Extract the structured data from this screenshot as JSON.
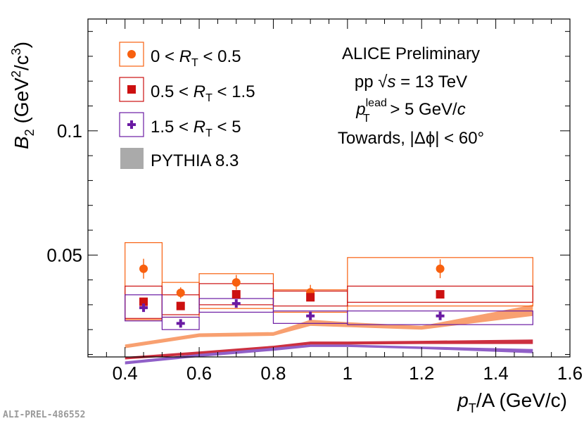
{
  "chart_data": {
    "type": "scatter",
    "xlabel_main": "p",
    "xlabel_sub": "T",
    "xlabel_rest": "/A (GeV/c)",
    "ylabel_main": "B",
    "ylabel_sub": "2",
    "ylabel_open": " (GeV",
    "ylabel_sup1": "2",
    "ylabel_mid": "/c",
    "ylabel_sup2": "3",
    "ylabel_close": ")",
    "xlim": [
      0.3,
      1.6
    ],
    "ylim": [
      0.009,
      0.145
    ],
    "x_ticks": [
      0.4,
      0.6,
      0.8,
      1.0,
      1.2,
      1.4,
      1.6
    ],
    "x_tick_labels": [
      "0.4",
      "0.6",
      "0.8",
      "1",
      "1.2",
      "1.4",
      "1.6"
    ],
    "y_ticks": [
      0.05,
      0.1
    ],
    "y_tick_labels": [
      "0.05",
      "0.1"
    ],
    "series": [
      {
        "name": "0 < RT < 0.5",
        "color": "#f8600f",
        "marker": "circle",
        "x": [
          0.45,
          0.55,
          0.7,
          0.9,
          1.25
        ],
        "y": [
          0.0445,
          0.0348,
          0.039,
          0.035,
          0.0445
        ],
        "stat_err": [
          0.004,
          0.0022,
          0.003,
          0.003,
          0.0038
        ],
        "x_low": [
          0.4,
          0.5,
          0.6,
          0.8,
          1.0
        ],
        "x_high": [
          0.5,
          0.6,
          0.8,
          1.0,
          1.5
        ],
        "sys_low": [
          0.024,
          0.025,
          0.0285,
          0.027,
          0.0295
        ],
        "sys_high": [
          0.055,
          0.039,
          0.0425,
          0.036,
          0.049
        ]
      },
      {
        "name": "0.5 < RT < 1.5",
        "color": "#cc1010",
        "marker": "square",
        "x": [
          0.45,
          0.55,
          0.7,
          0.9,
          1.25
        ],
        "y": [
          0.0312,
          0.0295,
          0.0342,
          0.033,
          0.0342
        ],
        "stat_err": [
          0.0015,
          0.0012,
          0.0015,
          0.0015,
          0.0015
        ],
        "x_low": [
          0.4,
          0.5,
          0.6,
          0.8,
          1.0
        ],
        "x_high": [
          0.5,
          0.6,
          0.8,
          1.0,
          1.5
        ],
        "sys_low": [
          0.0245,
          0.026,
          0.03,
          0.0295,
          0.031
        ],
        "sys_high": [
          0.0375,
          0.034,
          0.0385,
          0.0355,
          0.0375
        ]
      },
      {
        "name": "1.5 < RT < 5",
        "color": "#6a1aa3",
        "marker": "cross",
        "x": [
          0.45,
          0.55,
          0.7,
          0.9,
          1.25
        ],
        "y": [
          0.0288,
          0.0225,
          0.0305,
          0.0255,
          0.0255
        ],
        "stat_err": [
          0.001,
          0.001,
          0.001,
          0.001,
          0.001
        ],
        "x_low": [
          0.4,
          0.5,
          0.6,
          0.8,
          1.0
        ],
        "x_high": [
          0.5,
          0.6,
          0.8,
          1.0,
          1.5
        ],
        "sys_low": [
          0.0235,
          0.02,
          0.027,
          0.0225,
          0.022
        ],
        "sys_high": [
          0.034,
          0.025,
          0.0325,
          0.0275,
          0.0275
        ]
      }
    ],
    "pythia": {
      "name": "PYTHIA 8.3",
      "bands": [
        {
          "color": "#f8a070",
          "x": [
            0.4,
            0.6,
            0.8,
            0.9,
            1.0,
            1.2,
            1.5
          ],
          "low": [
            0.0125,
            0.017,
            0.0175,
            0.0215,
            0.021,
            0.02,
            0.0255
          ],
          "high": [
            0.014,
            0.0185,
            0.019,
            0.024,
            0.023,
            0.0215,
            0.03
          ]
        },
        {
          "color": "#cc3040",
          "x": [
            0.4,
            0.6,
            0.8,
            0.9,
            1.0,
            1.2,
            1.5
          ],
          "low": [
            0.008,
            0.01,
            0.0125,
            0.014,
            0.014,
            0.0142,
            0.0142
          ],
          "high": [
            0.009,
            0.0112,
            0.0135,
            0.0152,
            0.0152,
            0.0155,
            0.016
          ]
        },
        {
          "color": "#9060c8",
          "x": [
            0.4,
            0.6,
            0.8,
            0.9,
            1.0,
            1.2,
            1.5
          ],
          "low": [
            0.006,
            0.009,
            0.0115,
            0.013,
            0.013,
            0.0122,
            0.0105
          ],
          "high": [
            0.0072,
            0.0102,
            0.0127,
            0.014,
            0.014,
            0.0132,
            0.0122
          ]
        }
      ]
    },
    "legend": [
      {
        "pre": "0 < ",
        "r": "R",
        "rsub": "T",
        "post": " < 0.5",
        "color": "#f8600f",
        "marker": "circle"
      },
      {
        "pre": "0.5 < ",
        "r": "R",
        "rsub": "T",
        "post": " < 1.5",
        "color": "#cc1010",
        "marker": "square"
      },
      {
        "pre": "1.5 < ",
        "r": "R",
        "rsub": "T",
        "post": " < 5",
        "color": "#6a1aa3",
        "marker": "cross"
      },
      {
        "label": "PYTHIA 8.3",
        "color": "#aaaaaa",
        "marker": "band"
      }
    ],
    "annotations": {
      "experiment": "ALICE Preliminary",
      "system_pre": "pp  ",
      "system_sqrt": "√",
      "system_s": "s",
      "system_post": " = 13 TeV",
      "trigger_p": "p",
      "trigger_sup": "lead",
      "trigger_sub": "T",
      "trigger_post": " > 5 GeV/",
      "trigger_c": "c",
      "region": "Towards, |Δϕ| < 60°"
    },
    "watermark": "ALI-PREL-486552"
  }
}
